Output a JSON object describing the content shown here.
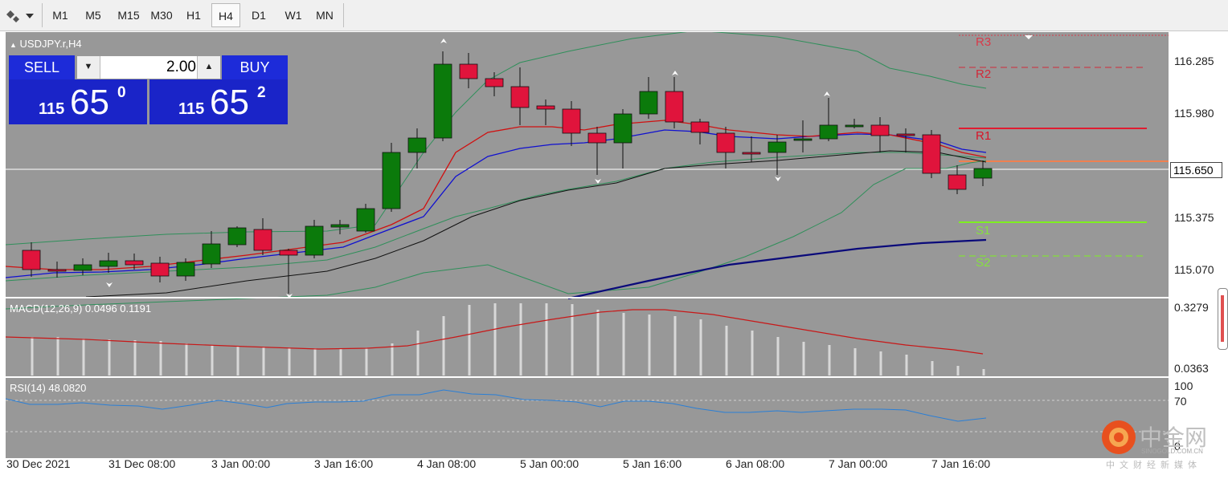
{
  "toolbar": {
    "timeframes": [
      "M1",
      "M5",
      "M15",
      "M30",
      "H1",
      "H4",
      "D1",
      "W1",
      "MN"
    ],
    "active": "H4"
  },
  "chart": {
    "symbol_label": "USDJPY.r,H4",
    "price_labels": [
      "116.285",
      "115.980",
      "115.375",
      "115.070"
    ],
    "current_price": "115.650",
    "macd_label": "MACD(12,26,9) 0.0496 0.1191",
    "macd_scale": [
      "0.3279",
      "0.0363"
    ],
    "rsi_label": "RSI(14) 48.0820",
    "rsi_scale": [
      "100",
      "70",
      "0"
    ],
    "time_labels": [
      "30 Dec 2021",
      "31 Dec 08:00",
      "3 Jan 00:00",
      "3 Jan 16:00",
      "4 Jan 08:00",
      "5 Jan 00:00",
      "5 Jan 16:00",
      "6 Jan 08:00",
      "7 Jan 00:00",
      "7 Jan 16:00"
    ],
    "pivot_labels": [
      "R3",
      "R2",
      "R1",
      "S1",
      "S2"
    ]
  },
  "trade": {
    "sell_label": "SELL",
    "buy_label": "BUY",
    "lot": "2.00",
    "bid_small": "115",
    "bid_big": "65",
    "bid_sup": "0",
    "ask_small": "115",
    "ask_big": "65",
    "ask_sup": "2"
  },
  "watermark": {
    "title": "中金网",
    "sub": "中文财经新媒体",
    "site": "SINOGOLD.COM.CN"
  },
  "colors": {
    "background": "#989898",
    "bull": "#0b7a0b",
    "bear": "#e0143c",
    "buy_sell": "#1d2bd9"
  }
}
